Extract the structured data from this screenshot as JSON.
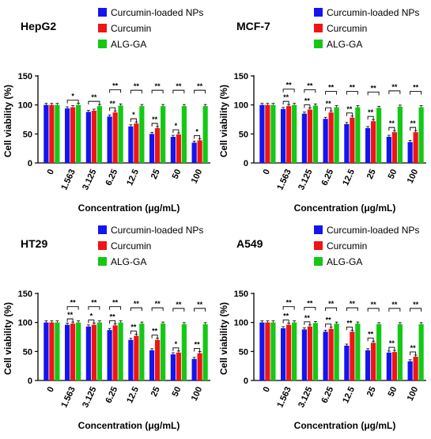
{
  "colors": {
    "nps": "#1414f0",
    "cur": "#f01414",
    "alg": "#14c814"
  },
  "chart_data": [
    {
      "type": "bar",
      "title": "HepG2",
      "xlabel": "Concentration (μg/mL)",
      "ylabel": "Cell viability (%)",
      "ylim": [
        0,
        150
      ],
      "yticks": [
        "0",
        "50",
        "100",
        "150"
      ],
      "categories": [
        "0",
        "1.563",
        "3.125",
        "6.25",
        "12.5",
        "25",
        "50",
        "100"
      ],
      "series": [
        {
          "name": "Curcumin-loaded NPs",
          "values": [
            100,
            94,
            88,
            80,
            63,
            50,
            45,
            35
          ]
        },
        {
          "name": "Curcumin",
          "values": [
            100,
            96,
            90,
            87,
            68,
            60,
            49,
            39
          ]
        },
        {
          "name": "ALG-GA",
          "values": [
            100,
            100,
            98,
            99,
            98,
            98,
            98,
            98
          ]
        }
      ],
      "annotations": [
        {
          "cat": 1,
          "labels": [
            "*"
          ]
        },
        {
          "cat": 2,
          "labels": [
            "**"
          ]
        },
        {
          "cat": 3,
          "labels": [
            "**",
            "**"
          ]
        },
        {
          "cat": 4,
          "labels": [
            "*",
            "**"
          ]
        },
        {
          "cat": 5,
          "labels": [
            "**",
            "**"
          ]
        },
        {
          "cat": 6,
          "labels": [
            "*",
            "**"
          ]
        },
        {
          "cat": 7,
          "labels": [
            "*",
            "**"
          ]
        }
      ]
    },
    {
      "type": "bar",
      "title": "MCF-7",
      "xlabel": "Concentration (μg/mL)",
      "ylabel": "Cell viability (%)",
      "ylim": [
        0,
        150
      ],
      "yticks": [
        "0",
        "50",
        "100",
        "150"
      ],
      "categories": [
        "0",
        "1.563",
        "3.125",
        "6.25",
        "12.5",
        "25",
        "50",
        "100"
      ],
      "series": [
        {
          "name": "Curcumin-loaded NPs",
          "values": [
            100,
            93,
            85,
            76,
            67,
            60,
            45,
            36
          ]
        },
        {
          "name": "Curcumin",
          "values": [
            100,
            98,
            92,
            87,
            78,
            72,
            53,
            53
          ]
        },
        {
          "name": "ALG-GA",
          "values": [
            100,
            100,
            99,
            96,
            96,
            95,
            97,
            96
          ]
        }
      ],
      "annotations": [
        {
          "cat": 1,
          "labels": [
            "**",
            "**"
          ]
        },
        {
          "cat": 2,
          "labels": [
            "**",
            "**"
          ]
        },
        {
          "cat": 3,
          "labels": [
            "**",
            "**"
          ]
        },
        {
          "cat": 4,
          "labels": [
            "**",
            "**"
          ]
        },
        {
          "cat": 5,
          "labels": [
            "**",
            "**"
          ]
        },
        {
          "cat": 6,
          "labels": [
            "**",
            "**"
          ]
        },
        {
          "cat": 7,
          "labels": [
            "**",
            "**"
          ]
        }
      ]
    },
    {
      "type": "bar",
      "title": "HT29",
      "xlabel": "Concentration (μg/mL)",
      "ylabel": "Cell viability (%)",
      "ylim": [
        0,
        150
      ],
      "yticks": [
        "0",
        "50",
        "100",
        "150"
      ],
      "categories": [
        "0",
        "1.563",
        "3.125",
        "6.25",
        "12.5",
        "25",
        "50",
        "100"
      ],
      "series": [
        {
          "name": "Curcumin-loaded NPs",
          "values": [
            100,
            96,
            93,
            87,
            70,
            52,
            45,
            37
          ]
        },
        {
          "name": "Curcumin",
          "values": [
            100,
            98,
            96,
            95,
            77,
            70,
            48,
            47
          ]
        },
        {
          "name": "ALG-GA",
          "values": [
            100,
            100,
            100,
            100,
            98,
            98,
            97,
            97
          ]
        }
      ],
      "annotations": [
        {
          "cat": 1,
          "labels": [
            "**",
            "**"
          ]
        },
        {
          "cat": 2,
          "labels": [
            "*",
            "**"
          ]
        },
        {
          "cat": 3,
          "labels": [
            "**",
            "**"
          ]
        },
        {
          "cat": 4,
          "labels": [
            "**",
            "**"
          ]
        },
        {
          "cat": 5,
          "labels": [
            "**",
            "**"
          ]
        },
        {
          "cat": 6,
          "labels": [
            "*",
            "**"
          ]
        },
        {
          "cat": 7,
          "labels": [
            "**",
            "**"
          ]
        }
      ]
    },
    {
      "type": "bar",
      "title": "A549",
      "xlabel": "Concentration (μg/mL)",
      "ylabel": "Cell viability (%)",
      "ylim": [
        0,
        150
      ],
      "yticks": [
        "0",
        "50",
        "100",
        "150"
      ],
      "categories": [
        "0",
        "1.563",
        "3.125",
        "6.25",
        "12.5",
        "25",
        "50",
        "100"
      ],
      "series": [
        {
          "name": "Curcumin-loaded NPs",
          "values": [
            100,
            90,
            88,
            84,
            60,
            52,
            48,
            33
          ]
        },
        {
          "name": "Curcumin",
          "values": [
            100,
            96,
            93,
            89,
            84,
            65,
            49,
            41
          ]
        },
        {
          "name": "ALG-GA",
          "values": [
            100,
            100,
            99,
            98,
            98,
            97,
            97,
            97
          ]
        }
      ],
      "annotations": [
        {
          "cat": 1,
          "labels": [
            "**",
            "**"
          ]
        },
        {
          "cat": 2,
          "labels": [
            "**",
            "**"
          ]
        },
        {
          "cat": 3,
          "labels": [
            "**",
            "**"
          ]
        },
        {
          "cat": 4,
          "labels": [
            "**",
            "**"
          ]
        },
        {
          "cat": 5,
          "labels": [
            "**",
            "**"
          ]
        },
        {
          "cat": 6,
          "labels": [
            "**",
            "**"
          ]
        },
        {
          "cat": 7,
          "labels": [
            "**",
            "**"
          ]
        }
      ]
    }
  ]
}
